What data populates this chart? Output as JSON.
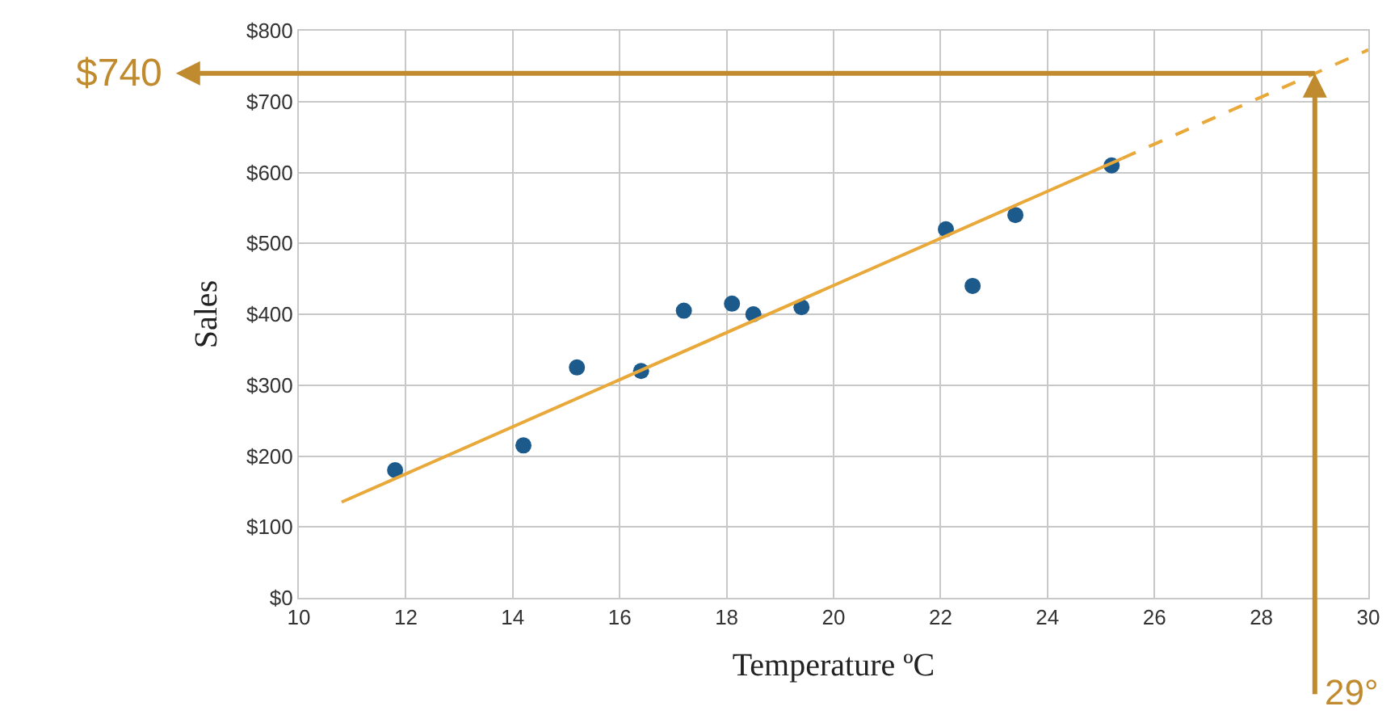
{
  "chart_data": {
    "type": "scatter",
    "xlabel": "Temperature ºC",
    "ylabel": "Sales",
    "series": [
      {
        "color": "#1c5a8c",
        "marker": "circle",
        "x": [
          11.8,
          14.2,
          15.2,
          16.4,
          17.2,
          18.1,
          18.5,
          19.4,
          22.1,
          22.6,
          23.4,
          25.2
        ],
        "values": [
          180,
          215,
          325,
          320,
          405,
          415,
          400,
          410,
          520,
          440,
          540,
          610
        ]
      },
      {
        "type": "line",
        "color": "#e8a93a",
        "marker": "none",
        "line_style": "solid",
        "x": [
          10.8,
          25.4
        ],
        "values": [
          135,
          620
        ]
      },
      {
        "type": "line",
        "color": "#e8a93a",
        "marker": "none",
        "line_style": "dashed",
        "x": [
          25.4,
          30
        ],
        "values": [
          620,
          773
        ]
      }
    ],
    "xlim": [
      10,
      30
    ],
    "xticks": [
      10,
      12,
      14,
      16,
      18,
      20,
      22,
      24,
      26,
      28,
      30
    ],
    "ylim": [
      0,
      800
    ],
    "yticks": [
      {
        "value": 0,
        "label": "$0"
      },
      {
        "value": 100,
        "label": "$100"
      },
      {
        "value": 200,
        "label": "$200"
      },
      {
        "value": 300,
        "label": "$300"
      },
      {
        "value": 400,
        "label": "$400"
      },
      {
        "value": 500,
        "label": "$500"
      },
      {
        "value": 600,
        "label": "$600"
      },
      {
        "value": 700,
        "label": "$700"
      },
      {
        "value": 800,
        "label": "$800"
      }
    ],
    "grid": true,
    "ref_lines": [
      {
        "axis": "y",
        "value": 740,
        "label": "$740",
        "color": "#c08a2e"
      },
      {
        "axis": "x",
        "value": 29,
        "label": "29°",
        "color": "#c08a2e"
      }
    ]
  }
}
